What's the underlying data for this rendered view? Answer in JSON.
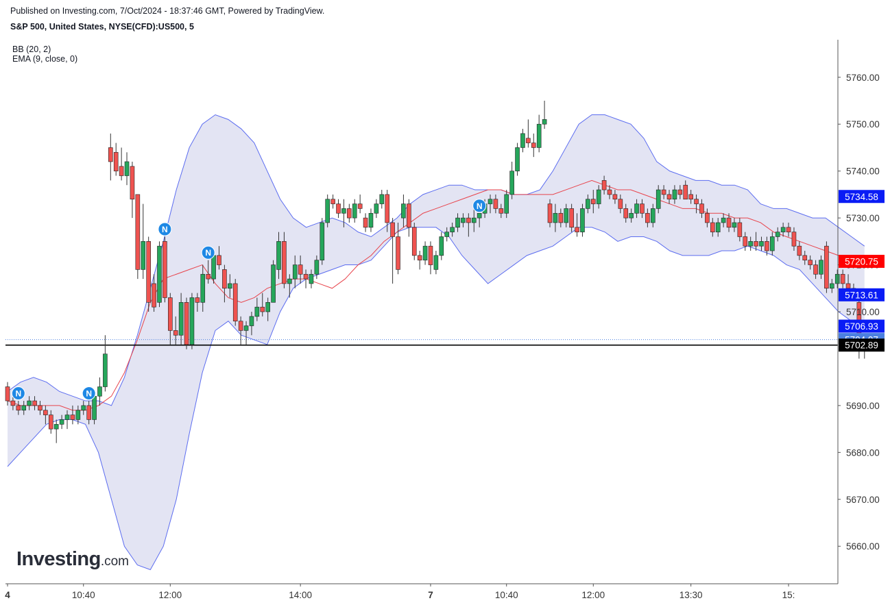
{
  "header": {
    "published": "Published on Investing.com, 7/Oct/2024 - 18:37:46 GMT, Powered by TradingView.",
    "symbol": "S&P 500, United States, NYSE(CFD):US500, 5"
  },
  "indicators": [
    "BB (20, 2)",
    "EMA (9, close, 0)"
  ],
  "logo": {
    "brand": "Investing",
    "suffix": ".com"
  },
  "colors": {
    "up": "#26a65b",
    "down": "#ef5350",
    "bb_line": "#5b6cf0",
    "bb_fill": "#e3e4f3",
    "ema": "#e8434b",
    "label_blue": "#0a1cf5",
    "label_red": "#ff0000",
    "label_black": "#000000",
    "label_current": "#4b80e0"
  },
  "chart_data": {
    "type": "candlestick",
    "ylim": [
      5652,
      5768
    ],
    "y_ticks": [
      "5760.00",
      "5750.00",
      "5740.00",
      "5730.00",
      "5720.00",
      "5710.00",
      "5690.00",
      "5680.00",
      "5670.00",
      "5660.00"
    ],
    "x_ticks": [
      {
        "label": "4",
        "bold": true,
        "bar": 0
      },
      {
        "label": "10:40",
        "bold": false,
        "bar": 14
      },
      {
        "label": "12:00",
        "bold": false,
        "bar": 30
      },
      {
        "label": "14:00",
        "bold": false,
        "bar": 54
      },
      {
        "label": "7",
        "bold": true,
        "bar": 78
      },
      {
        "label": "10:40",
        "bold": false,
        "bar": 92
      },
      {
        "label": "12:00",
        "bold": false,
        "bar": 108
      },
      {
        "label": "13:30",
        "bold": false,
        "bar": 126
      },
      {
        "label": "15:",
        "bold": false,
        "bar": 144
      }
    ],
    "price_labels": [
      {
        "value": "5734.58",
        "color": "label_blue"
      },
      {
        "value": "5720.75",
        "color": "label_red"
      },
      {
        "value": "5713.61",
        "color": "label_blue"
      },
      {
        "value": "5706.93",
        "color": "label_blue"
      },
      {
        "value": "5704.07",
        "color": "label_current"
      },
      {
        "value": "5702.89",
        "color": "label_black"
      }
    ],
    "horizontal_line": 5702.89,
    "current_price": 5704.07,
    "markers": [
      {
        "label": "N",
        "bar": 2
      },
      {
        "label": "N",
        "bar": 15
      },
      {
        "label": "N",
        "bar": 29
      },
      {
        "label": "N",
        "bar": 37
      },
      {
        "label": "N",
        "bar": 87
      }
    ],
    "candles": [
      [
        5694,
        5695,
        5690,
        5691
      ],
      [
        5691,
        5692,
        5689,
        5690
      ],
      [
        5690,
        5691,
        5688,
        5689
      ],
      [
        5689,
        5691,
        5688,
        5690
      ],
      [
        5690,
        5692,
        5689,
        5691
      ],
      [
        5691,
        5692,
        5689,
        5690
      ],
      [
        5690,
        5691,
        5688,
        5689
      ],
      [
        5689,
        5690,
        5686,
        5688
      ],
      [
        5688,
        5689,
        5684,
        5685
      ],
      [
        5685,
        5687,
        5682,
        5686
      ],
      [
        5686,
        5688,
        5685,
        5687
      ],
      [
        5687,
        5689,
        5685,
        5688
      ],
      [
        5688,
        5690,
        5686,
        5687
      ],
      [
        5687,
        5690,
        5686,
        5689
      ],
      [
        5689,
        5691,
        5688,
        5690
      ],
      [
        5690,
        5691,
        5686,
        5687
      ],
      [
        5687,
        5693,
        5686,
        5692
      ],
      [
        5692,
        5696,
        5690,
        5694
      ],
      [
        5694,
        5705,
        5693,
        5701
      ],
      [
        5745,
        5748,
        5738,
        5742
      ],
      [
        5744,
        5746,
        5739,
        5740
      ],
      [
        5741,
        5745,
        5738,
        5739
      ],
      [
        5739,
        5744,
        5737,
        5742
      ],
      [
        5741,
        5742,
        5730,
        5734
      ],
      [
        5735,
        5735,
        5717,
        5719
      ],
      [
        5719,
        5733,
        5717,
        5725
      ],
      [
        5725,
        5726,
        5710,
        5712
      ],
      [
        5716,
        5718,
        5710,
        5711
      ],
      [
        5712,
        5725,
        5711,
        5724
      ],
      [
        5725,
        5726,
        5712,
        5713
      ],
      [
        5713,
        5714,
        5703,
        5706
      ],
      [
        5706,
        5709,
        5703,
        5705
      ],
      [
        5705,
        5714,
        5703,
        5712
      ],
      [
        5712,
        5713,
        5702,
        5703
      ],
      [
        5703,
        5714,
        5702,
        5713
      ],
      [
        5713,
        5714,
        5710,
        5712
      ],
      [
        5712,
        5720,
        5710,
        5718
      ],
      [
        5718,
        5721,
        5716,
        5717
      ],
      [
        5717,
        5723,
        5716,
        5722
      ],
      [
        5722,
        5724,
        5719,
        5720
      ],
      [
        5719,
        5720,
        5712,
        5715
      ],
      [
        5715,
        5718,
        5713,
        5716
      ],
      [
        5716,
        5717,
        5707,
        5708
      ],
      [
        5708,
        5709,
        5703,
        5706
      ],
      [
        5706,
        5708,
        5703,
        5707
      ],
      [
        5707,
        5710,
        5705,
        5709
      ],
      [
        5709,
        5713,
        5708,
        5711
      ],
      [
        5711,
        5714,
        5709,
        5710
      ],
      [
        5710,
        5713,
        5708,
        5712
      ],
      [
        5712,
        5721,
        5712,
        5720
      ],
      [
        5719,
        5727,
        5717,
        5725
      ],
      [
        5725,
        5727,
        5715,
        5716
      ],
      [
        5716,
        5718,
        5713,
        5717
      ],
      [
        5717,
        5722,
        5715,
        5720
      ],
      [
        5720,
        5722,
        5716,
        5718
      ],
      [
        5718,
        5719,
        5715,
        5717
      ],
      [
        5716,
        5719,
        5715,
        5718
      ],
      [
        5718,
        5722,
        5717,
        5721
      ],
      [
        5721,
        5730,
        5720,
        5729
      ],
      [
        5729,
        5735,
        5728,
        5734
      ],
      [
        5734,
        5735,
        5732,
        5733
      ],
      [
        5733,
        5734,
        5730,
        5731
      ],
      [
        5731,
        5734,
        5728,
        5732
      ],
      [
        5732,
        5733,
        5729,
        5730
      ],
      [
        5730,
        5734,
        5729,
        5733
      ],
      [
        5733,
        5735,
        5731,
        5732
      ],
      [
        5730,
        5731,
        5727,
        5728
      ],
      [
        5728,
        5732,
        5727,
        5731
      ],
      [
        5731,
        5734,
        5730,
        5733
      ],
      [
        5733,
        5736,
        5732,
        5735
      ],
      [
        5735,
        5736,
        5727,
        5729
      ],
      [
        5729,
        5730,
        5716,
        5726
      ],
      [
        5726,
        5729,
        5718,
        5719
      ],
      [
        5730,
        5735,
        5728,
        5733
      ],
      [
        5733,
        5734,
        5726,
        5728
      ],
      [
        5728,
        5729,
        5721,
        5722
      ],
      [
        5722,
        5723,
        5719,
        5721
      ],
      [
        5721,
        5725,
        5720,
        5724
      ],
      [
        5724,
        5725,
        5718,
        5720
      ],
      [
        5719,
        5723,
        5718,
        5722
      ],
      [
        5722,
        5727,
        5721,
        5726
      ],
      [
        5726,
        5728,
        5725,
        5727
      ],
      [
        5727,
        5729,
        5726,
        5728
      ],
      [
        5728,
        5731,
        5727,
        5730
      ],
      [
        5729,
        5731,
        5728,
        5730
      ],
      [
        5730,
        5731,
        5726,
        5729
      ],
      [
        5729,
        5732,
        5727,
        5730
      ],
      [
        5730,
        5731,
        5728,
        5731
      ],
      [
        5731,
        5734,
        5730,
        5733
      ],
      [
        5733,
        5735,
        5731,
        5734
      ],
      [
        5734,
        5735,
        5731,
        5732
      ],
      [
        5732,
        5733,
        5730,
        5731
      ],
      [
        5731,
        5736,
        5730,
        5735
      ],
      [
        5735,
        5742,
        5734,
        5740
      ],
      [
        5740,
        5746,
        5739,
        5745
      ],
      [
        5745,
        5749,
        5744,
        5748
      ],
      [
        5747,
        5751,
        5745,
        5746
      ],
      [
        5746,
        5748,
        5743,
        5745
      ],
      [
        5745,
        5752,
        5744,
        5750
      ],
      [
        5750,
        5755,
        5749,
        5751
      ],
      [
        5733,
        5734,
        5728,
        5729
      ],
      [
        5729,
        5733,
        5727,
        5731
      ],
      [
        5731,
        5732,
        5728,
        5729
      ],
      [
        5729,
        5733,
        5728,
        5732
      ],
      [
        5732,
        5733,
        5727,
        5728
      ],
      [
        5728,
        5731,
        5726,
        5727
      ],
      [
        5727,
        5733,
        5726,
        5732
      ],
      [
        5732,
        5735,
        5731,
        5734
      ],
      [
        5734,
        5736,
        5731,
        5733
      ],
      [
        5733,
        5737,
        5732,
        5736
      ],
      [
        5738,
        5739,
        5735,
        5736
      ],
      [
        5736,
        5737,
        5734,
        5735
      ],
      [
        5735,
        5736,
        5733,
        5734
      ],
      [
        5734,
        5735,
        5731,
        5732
      ],
      [
        5732,
        5733,
        5729,
        5730
      ],
      [
        5730,
        5732,
        5729,
        5731
      ],
      [
        5731,
        5734,
        5730,
        5733
      ],
      [
        5733,
        5734,
        5730,
        5731
      ],
      [
        5731,
        5732,
        5728,
        5729
      ],
      [
        5729,
        5733,
        5728,
        5732
      ],
      [
        5732,
        5737,
        5731,
        5736
      ],
      [
        5736,
        5737,
        5734,
        5735
      ],
      [
        5735,
        5736,
        5733,
        5734
      ],
      [
        5734,
        5737,
        5733,
        5736
      ],
      [
        5736,
        5737,
        5734,
        5735
      ],
      [
        5737,
        5738,
        5734,
        5734
      ],
      [
        5735,
        5736,
        5733,
        5734
      ],
      [
        5734,
        5735,
        5731,
        5733
      ],
      [
        5733,
        5734,
        5730,
        5731
      ],
      [
        5731,
        5732,
        5728,
        5729
      ],
      [
        5729,
        5730,
        5726,
        5727
      ],
      [
        5727,
        5730,
        5726,
        5729
      ],
      [
        5729,
        5731,
        5728,
        5730
      ],
      [
        5730,
        5731,
        5727,
        5728
      ],
      [
        5728,
        5730,
        5727,
        5729
      ],
      [
        5729,
        5730,
        5725,
        5726
      ],
      [
        5726,
        5727,
        5723,
        5724
      ],
      [
        5724,
        5726,
        5723,
        5725
      ],
      [
        5725,
        5727,
        5723,
        5724
      ],
      [
        5724,
        5726,
        5723,
        5725
      ],
      [
        5725,
        5726,
        5722,
        5723
      ],
      [
        5723,
        5727,
        5722,
        5726
      ],
      [
        5726,
        5728,
        5725,
        5727
      ],
      [
        5727,
        5729,
        5726,
        5728
      ],
      [
        5728,
        5729,
        5726,
        5727
      ],
      [
        5727,
        5728,
        5723,
        5724
      ],
      [
        5724,
        5725,
        5721,
        5722
      ],
      [
        5722,
        5723,
        5720,
        5721
      ],
      [
        5721,
        5722,
        5719,
        5720
      ],
      [
        5720,
        5721,
        5717,
        5718
      ],
      [
        5718,
        5722,
        5717,
        5721
      ],
      [
        5724,
        5725,
        5714,
        5715
      ],
      [
        5715,
        5717,
        5714,
        5716
      ],
      [
        5716,
        5719,
        5715,
        5718
      ],
      [
        5718,
        5719,
        5715,
        5716
      ],
      [
        5716,
        5718,
        5714,
        5715
      ],
      [
        5715,
        5716,
        5713,
        5714
      ],
      [
        5712,
        5713,
        5700,
        5703
      ],
      [
        5704,
        5705,
        5700,
        5704
      ]
    ],
    "bb_upper": [
      5693,
      5695,
      5696,
      5695,
      5693,
      5692,
      5691,
      5691,
      5690,
      5696,
      5705,
      5715,
      5725,
      5736,
      5745,
      5750,
      5752,
      5751,
      5749,
      5746,
      5740,
      5734,
      5730,
      5728,
      5729,
      5730,
      5729,
      5727,
      5726,
      5728,
      5730,
      5733,
      5735,
      5736,
      5737,
      5737,
      5736,
      5736,
      5736,
      5735,
      5735,
      5736,
      5740,
      5745,
      5750,
      5752,
      5752,
      5751,
      5750,
      5747,
      5742,
      5740,
      5739,
      5738,
      5738,
      5737,
      5737,
      5736,
      5733,
      5732,
      5732,
      5731,
      5730,
      5730,
      5728,
      5726,
      5724
    ],
    "bb_lower": [
      5677,
      5680,
      5683,
      5686,
      5687,
      5687,
      5686,
      5680,
      5670,
      5660,
      5656,
      5655,
      5660,
      5670,
      5684,
      5697,
      5706,
      5708,
      5705,
      5704,
      5703,
      5710,
      5715,
      5717,
      5718,
      5719,
      5720,
      5720,
      5721,
      5724,
      5727,
      5728,
      5728,
      5728,
      5726,
      5722,
      5719,
      5716,
      5718,
      5720,
      5722,
      5723,
      5724,
      5726,
      5728,
      5728,
      5727,
      5725,
      5726,
      5726,
      5725,
      5723,
      5722,
      5722,
      5722,
      5723,
      5723,
      5724,
      5723,
      5722,
      5720,
      5719,
      5716,
      5713,
      5710,
      5708,
      5706
    ],
    "ema": [
      5691,
      5690,
      5690,
      5690,
      5690,
      5689,
      5689,
      5690,
      5692,
      5697,
      5704,
      5712,
      5717,
      5718,
      5719,
      5720,
      5716,
      5713,
      5712,
      5713,
      5715,
      5716,
      5717,
      5717,
      5716,
      5715,
      5717,
      5720,
      5722,
      5725,
      5727,
      5729,
      5731,
      5732,
      5733,
      5734,
      5735,
      5736,
      5736,
      5735,
      5735,
      5735,
      5735,
      5736,
      5737,
      5738,
      5737,
      5736,
      5736,
      5735,
      5734,
      5733,
      5732,
      5732,
      5731,
      5731,
      5730,
      5730,
      5729,
      5727,
      5726,
      5725,
      5724,
      5723,
      5722,
      5721,
      5721
    ]
  }
}
